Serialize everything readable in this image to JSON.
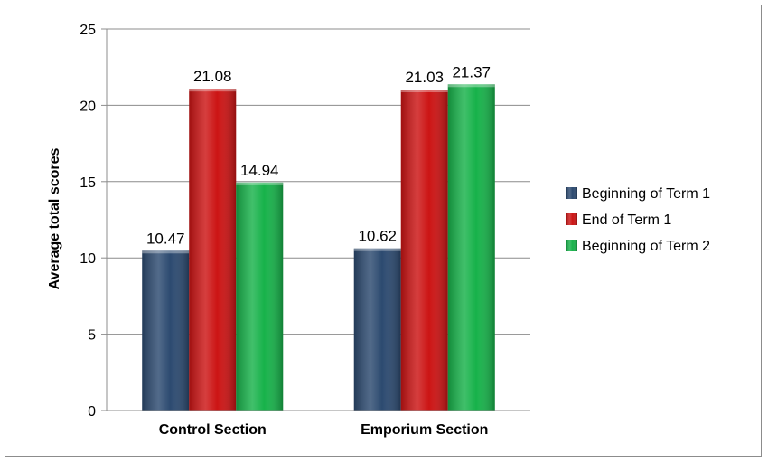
{
  "chart_data": {
    "type": "bar",
    "categories": [
      "Control Section",
      "Emporium Section"
    ],
    "series": [
      {
        "name": "Beginning of Term 1",
        "values": [
          10.47,
          10.62
        ],
        "color": "#2c4a70"
      },
      {
        "name": "End of Term 1",
        "values": [
          21.08,
          21.03
        ],
        "color": "#cc1414"
      },
      {
        "name": "Beginning of Term 2",
        "values": [
          14.94,
          21.37
        ],
        "color": "#17b24a"
      }
    ],
    "data_labels": [
      [
        "10.47",
        "10.62"
      ],
      [
        "21.08",
        "21.03"
      ],
      [
        "14.94",
        "21.37"
      ]
    ],
    "title": "",
    "xlabel": "",
    "ylabel": "Average total scores",
    "ylim": [
      0,
      25
    ],
    "yticks": [
      "0",
      "5",
      "10",
      "15",
      "20",
      "25"
    ],
    "grid": true,
    "legend_position": "right"
  }
}
